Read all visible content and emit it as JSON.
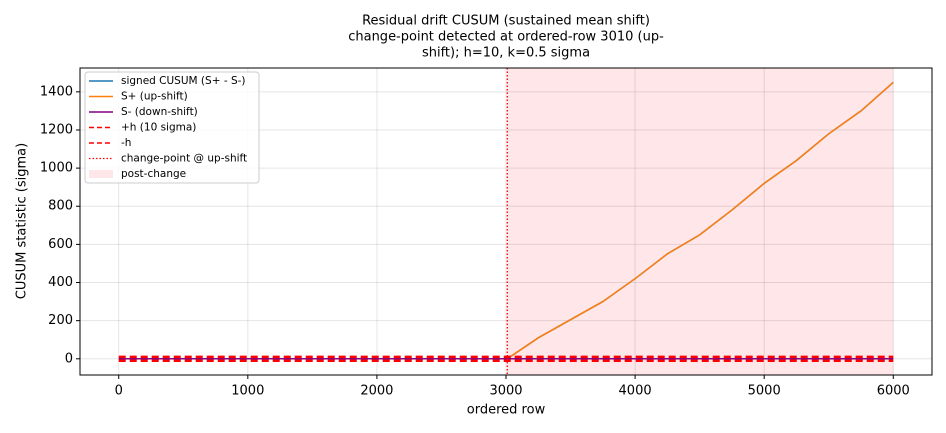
{
  "chart_data": {
    "type": "line",
    "title": [
      "Residual drift CUSUM (sustained mean shift)",
      "change-point detected at ordered-row 3010 (up-",
      "shift); h=10, k=0.5 sigma"
    ],
    "x_label": "ordered row",
    "y_label": "CUSUM statistic (sigma)",
    "x": [
      0,
      3010,
      3250,
      3500,
      3750,
      4000,
      4250,
      4500,
      4750,
      5000,
      5250,
      5500,
      5750,
      6000
    ],
    "series": [
      {
        "name": "signed CUSUM (S+ - S-)",
        "color": "#1f77b4",
        "values": [
          0,
          0,
          110,
          205,
          300,
          420,
          550,
          650,
          780,
          920,
          1040,
          1180,
          1300,
          1450
        ]
      },
      {
        "name": "S+ (up-shift)",
        "color": "#ff7f0e",
        "values": [
          0,
          0,
          110,
          205,
          300,
          420,
          550,
          650,
          780,
          920,
          1040,
          1180,
          1300,
          1450
        ]
      },
      {
        "name": "S- (down-shift)",
        "color": "#800080",
        "values": [
          0,
          0,
          0,
          0,
          0,
          0,
          0,
          0,
          0,
          0,
          0,
          0,
          0,
          0
        ]
      }
    ],
    "hlines": [
      {
        "name": "+h (10 sigma)",
        "color": "#ff0000",
        "value": 10
      },
      {
        "name": "-h",
        "color": "#ff0000",
        "value": -10
      }
    ],
    "vline": {
      "name": "change-point @ up-shift",
      "color": "#ff0000",
      "value": 3010
    },
    "shade": {
      "name": "post-change",
      "color": "#ffe6e8",
      "x0": 3010,
      "x1": 6000
    },
    "xlim": [
      -300,
      6300
    ],
    "ylim": [
      -85,
      1525
    ],
    "xticks": [
      0,
      1000,
      2000,
      3000,
      4000,
      5000,
      6000
    ],
    "yticks": [
      0,
      200,
      400,
      600,
      800,
      1000,
      1200,
      1400
    ],
    "grid": true,
    "legend": "upper left"
  }
}
